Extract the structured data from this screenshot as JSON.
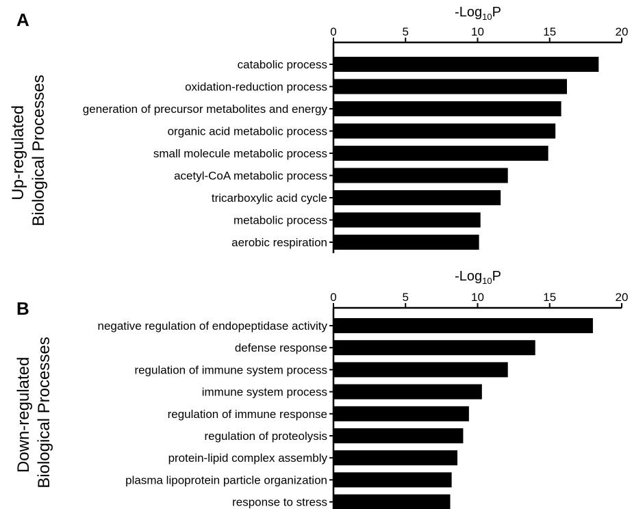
{
  "chart_data": [
    {
      "type": "bar",
      "orientation": "horizontal",
      "panel_label": "A",
      "xlabel_base": "-Log",
      "xlabel_sub": "10",
      "xlabel_tail": "P",
      "ylabel_line1": "Up-regulated",
      "ylabel_line2": "Biological Processes",
      "xlim": [
        0,
        20
      ],
      "xticks": [
        0,
        5,
        10,
        15,
        20
      ],
      "categories": [
        "catabolic process",
        "oxidation-reduction process",
        "generation of precursor metabolites and energy",
        "organic acid metabolic process",
        "small molecule metabolic process",
        "acetyl-CoA metabolic process",
        "tricarboxylic acid cycle",
        "metabolic process",
        "aerobic respiration"
      ],
      "values": [
        18.4,
        16.2,
        15.8,
        15.4,
        14.9,
        12.1,
        11.6,
        10.2,
        10.1
      ],
      "bar_color": "#000000",
      "grid": false
    },
    {
      "type": "bar",
      "orientation": "horizontal",
      "panel_label": "B",
      "xlabel_base": "-Log",
      "xlabel_sub": "10",
      "xlabel_tail": "P",
      "ylabel_line1": "Down-regulated",
      "ylabel_line2": "Biological Processes",
      "xlim": [
        0,
        20
      ],
      "xticks": [
        0,
        5,
        10,
        15,
        20
      ],
      "categories": [
        "negative regulation of endopeptidase activity",
        "defense response",
        "regulation of immune system process",
        "immune system process",
        "regulation of immune response",
        "regulation of proteolysis",
        "protein-lipid complex assembly",
        "plasma lipoprotein particle organization",
        "response to stress"
      ],
      "values": [
        18.0,
        14.0,
        12.1,
        10.3,
        9.4,
        9.0,
        8.6,
        8.2,
        8.1
      ],
      "bar_color": "#000000",
      "grid": false
    }
  ]
}
